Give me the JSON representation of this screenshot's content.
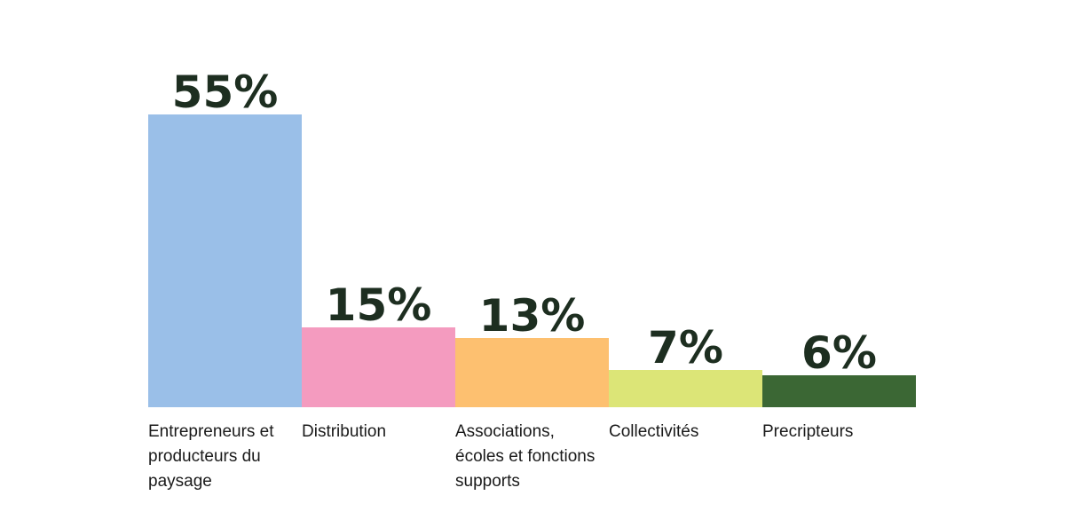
{
  "chart_data": {
    "type": "bar",
    "title": "",
    "xlabel": "",
    "ylabel": "",
    "ylim": [
      0,
      55
    ],
    "grid": false,
    "legend": "none",
    "value_suffix": "%",
    "categories": [
      "Entrepreneurs et producteurs du paysage",
      "Distribution",
      "Associations, écoles et fonctions supports",
      "Collectivités",
      "Precripteurs"
    ],
    "category_label_lines": [
      [
        "Entrepreneurs et",
        "producteurs du",
        "paysage"
      ],
      [
        "Distribution"
      ],
      [
        "Associations,",
        "écoles et fonctions",
        "supports"
      ],
      [
        "Collectivités"
      ],
      [
        "Precripteurs"
      ]
    ],
    "values": [
      55,
      15,
      13,
      7,
      6
    ],
    "value_labels": [
      "55%",
      "15%",
      "13%",
      "7%",
      "6%"
    ],
    "colors": [
      "#9abfe8",
      "#f49bbf",
      "#fdc070",
      "#dce577",
      "#3b6734"
    ]
  }
}
